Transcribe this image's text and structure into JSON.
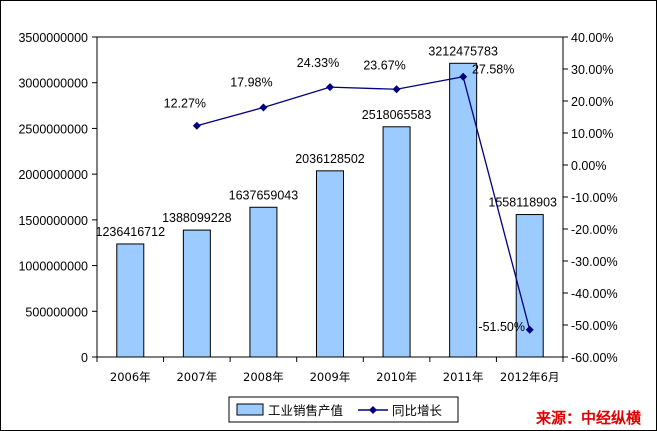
{
  "chart_data": {
    "type": "bar",
    "categories": [
      "2006年",
      "2007年",
      "2008年",
      "2009年",
      "2010年",
      "2011年",
      "2012年6月"
    ],
    "series": [
      {
        "name": "工业销售产值",
        "type": "bar",
        "axis": "left",
        "values": [
          1236416712,
          1388099228,
          1637659043,
          2036128502,
          2518065583,
          3212475783,
          1558118903
        ],
        "labels": [
          "1236416712",
          "1388099228",
          "1637659043",
          "2036128502",
          "2518065583",
          "3212475783",
          "1558118903"
        ]
      },
      {
        "name": "同比增长",
        "type": "line",
        "axis": "right",
        "values": [
          null,
          12.27,
          17.98,
          24.33,
          23.67,
          27.58,
          -51.5
        ],
        "labels": [
          "",
          "12.27%",
          "17.98%",
          "24.33%",
          "23.67%",
          "27.58%",
          "-51.50%"
        ]
      }
    ],
    "ylim": [
      0,
      3500000000
    ],
    "y2lim": [
      -60,
      40
    ],
    "yticks": [
      "0",
      "500000000",
      "1000000000",
      "1500000000",
      "2000000000",
      "2500000000",
      "3000000000",
      "3500000000"
    ],
    "y2ticks": [
      "-60.00%",
      "-50.00%",
      "-40.00%",
      "-30.00%",
      "-20.00%",
      "-10.00%",
      "0.00%",
      "10.00%",
      "20.00%",
      "30.00%",
      "40.00%"
    ],
    "grid": false,
    "legend": "bottom-center",
    "colors": {
      "bar_fill": "#9ccbff",
      "bar_stroke": "#000000",
      "line": "#000080"
    }
  },
  "source": "来源：中经纵横"
}
